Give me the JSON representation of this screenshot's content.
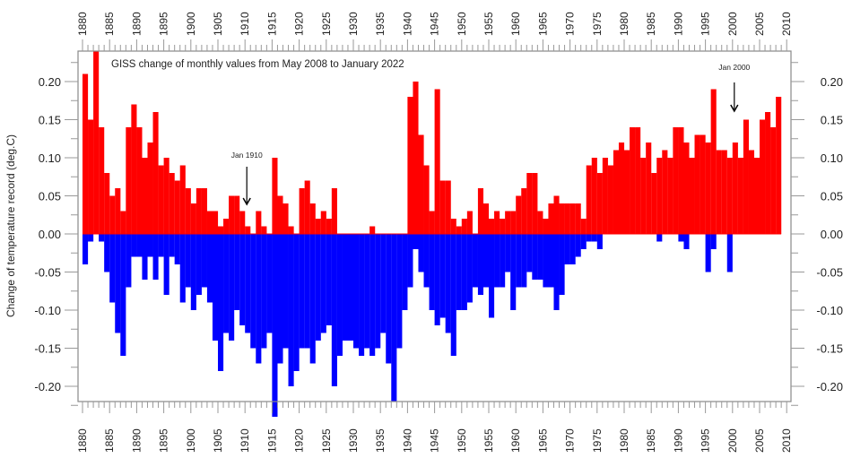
{
  "chart_data": {
    "type": "bar",
    "title": "GISS change of monthly values from May 2008 to January 2022",
    "xlabel": "",
    "ylabel": "Change of temperature record (deg.C)",
    "xlim": [
      1880,
      2010
    ],
    "ylim": [
      -0.24,
      0.24
    ],
    "x_ticks": [
      "1880",
      "1885",
      "1890",
      "1895",
      "1900",
      "1905",
      "1910",
      "1915",
      "1920",
      "1925",
      "1930",
      "1935",
      "1940",
      "1945",
      "1950",
      "1955",
      "1960",
      "1965",
      "1970",
      "1975",
      "1980",
      "1985",
      "1990",
      "1995",
      "2000",
      "2005",
      "2010"
    ],
    "y_ticks": [
      "0.20",
      "0.15",
      "0.10",
      "0.05",
      "0.00",
      "-0.05",
      "-0.10",
      "-0.15",
      "-0.20"
    ],
    "y_tick_values": [
      0.2,
      0.15,
      0.1,
      0.05,
      0,
      -0.05,
      -0.1,
      -0.15,
      -0.2
    ],
    "grid": false,
    "colors": {
      "positive": "#ff0000",
      "negative": "#0000ff"
    },
    "annotations": [
      {
        "text": "Jan 1910",
        "x": 1910
      },
      {
        "text": "Jan 2000",
        "x": 2000
      }
    ],
    "x": [
      1880,
      1881,
      1882,
      1883,
      1884,
      1885,
      1886,
      1887,
      1888,
      1889,
      1890,
      1891,
      1892,
      1893,
      1894,
      1895,
      1896,
      1897,
      1898,
      1899,
      1900,
      1901,
      1902,
      1903,
      1904,
      1905,
      1906,
      1907,
      1908,
      1909,
      1910,
      1911,
      1912,
      1913,
      1914,
      1915,
      1916,
      1917,
      1918,
      1919,
      1920,
      1921,
      1922,
      1923,
      1924,
      1925,
      1926,
      1927,
      1928,
      1929,
      1930,
      1931,
      1932,
      1933,
      1934,
      1935,
      1936,
      1937,
      1938,
      1939,
      1940,
      1941,
      1942,
      1943,
      1944,
      1945,
      1946,
      1947,
      1948,
      1949,
      1950,
      1951,
      1952,
      1953,
      1954,
      1955,
      1956,
      1957,
      1958,
      1959,
      1960,
      1961,
      1962,
      1963,
      1964,
      1965,
      1966,
      1967,
      1968,
      1969,
      1970,
      1971,
      1972,
      1973,
      1974,
      1975,
      1976,
      1977,
      1978,
      1979,
      1980,
      1981,
      1982,
      1983,
      1984,
      1985,
      1986,
      1987,
      1988,
      1989,
      1990,
      1991,
      1992,
      1993,
      1994,
      1995,
      1996,
      1997,
      1998,
      1999,
      2000,
      2001,
      2002,
      2003,
      2004,
      2005,
      2006,
      2007,
      2008
    ],
    "series": [
      {
        "values": [
          0.21,
          0.15,
          0.24,
          0.14,
          0.08,
          0.05,
          0.06,
          0.03,
          0.14,
          0.17,
          0.14,
          0.1,
          0.12,
          0.16,
          0.09,
          0.1,
          0.08,
          0.07,
          0.09,
          0.06,
          0.04,
          0.06,
          0.06,
          0.03,
          0.03,
          0.01,
          0.02,
          0.05,
          0.05,
          0.03,
          0.01,
          0.0,
          0.03,
          0.01,
          0.0,
          0.1,
          0.05,
          0.04,
          0.01,
          0.0,
          0.06,
          0.07,
          0.04,
          0.02,
          0.03,
          0.02,
          0.06,
          0,
          0,
          0,
          0,
          0,
          0,
          0.01,
          0,
          0,
          0,
          0,
          0,
          0,
          0.18,
          0.2,
          0.13,
          0.09,
          0.03,
          0.19,
          0.07,
          0.07,
          0.02,
          0.01,
          0.02,
          0.03,
          0.0,
          0.06,
          0.04,
          0.02,
          0.03,
          0.02,
          0.03,
          0.03,
          0.05,
          0.06,
          0.08,
          0.08,
          0.03,
          0.02,
          0.04,
          0.05,
          0.04,
          0.04,
          0.04,
          0.04,
          0.02,
          0.09,
          0.1,
          0.08,
          0.1,
          0.09,
          0.11,
          0.12,
          0.11,
          0.14,
          0.14,
          0.1,
          0.12,
          0.08,
          0.1,
          0.11,
          0.1,
          0.14,
          0.14,
          0.12,
          0.1,
          0.13,
          0.13,
          0.12,
          0.19,
          0.11,
          0.11,
          0.1,
          0.12,
          0.1,
          0.15,
          0.11,
          0.1,
          0.15,
          0.16,
          0.14,
          0.18
        ]
      },
      {
        "values": [
          -0.04,
          -0.01,
          0,
          -0.01,
          -0.05,
          -0.09,
          -0.13,
          -0.16,
          -0.07,
          -0.03,
          -0.03,
          -0.06,
          -0.03,
          -0.06,
          -0.03,
          -0.08,
          -0.03,
          -0.04,
          -0.09,
          -0.07,
          -0.1,
          -0.08,
          -0.07,
          -0.09,
          -0.14,
          -0.18,
          -0.13,
          -0.14,
          -0.1,
          -0.12,
          -0.13,
          -0.15,
          -0.17,
          -0.15,
          -0.13,
          -0.24,
          -0.17,
          -0.15,
          -0.2,
          -0.18,
          -0.15,
          -0.15,
          -0.17,
          -0.14,
          -0.13,
          -0.12,
          -0.2,
          -0.16,
          -0.14,
          -0.14,
          -0.15,
          -0.16,
          -0.15,
          -0.16,
          -0.15,
          -0.13,
          -0.17,
          -0.22,
          -0.15,
          -0.1,
          -0.07,
          -0.02,
          -0.05,
          -0.07,
          -0.1,
          -0.12,
          -0.11,
          -0.13,
          -0.16,
          -0.1,
          -0.1,
          -0.09,
          -0.07,
          -0.08,
          -0.07,
          -0.11,
          -0.07,
          -0.07,
          -0.05,
          -0.1,
          -0.07,
          -0.07,
          -0.05,
          -0.06,
          -0.06,
          -0.07,
          -0.07,
          -0.1,
          -0.08,
          -0.04,
          -0.04,
          -0.03,
          -0.02,
          -0.01,
          -0.01,
          -0.02,
          0,
          0,
          0,
          0,
          0,
          0,
          0,
          0,
          0,
          0,
          -0.01,
          0,
          0,
          0,
          -0.01,
          -0.02,
          0,
          0,
          0,
          -0.05,
          -0.02,
          0,
          0,
          -0.05,
          0,
          0,
          0,
          0,
          0,
          0,
          0,
          0,
          0
        ]
      }
    ]
  }
}
